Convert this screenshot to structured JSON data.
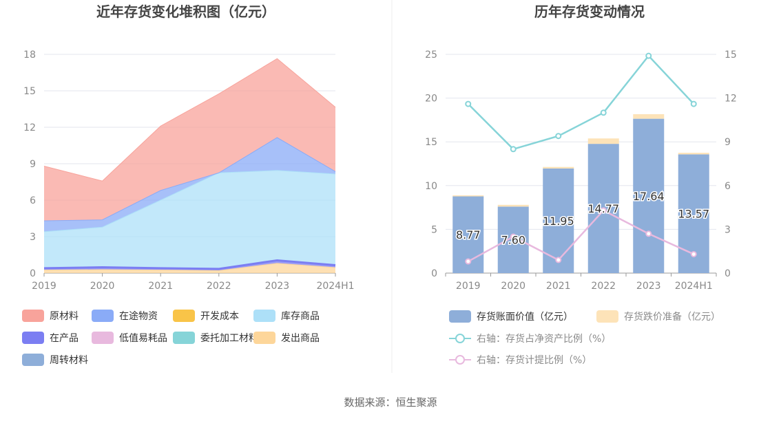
{
  "source": "数据来源：恒生聚源",
  "chart_data": [
    {
      "type": "area",
      "stacked": true,
      "title": "近年存货变化堆积图（亿元）",
      "categories": [
        "2019",
        "2020",
        "2021",
        "2022",
        "2023",
        "2024H1"
      ],
      "ylim": [
        0,
        18
      ],
      "yticks": [
        0,
        3,
        6,
        9,
        12,
        15,
        18
      ],
      "grid": true,
      "legend_position": "bottom",
      "series": [
        {
          "name": "原材料",
          "color": "#f8a39b",
          "values": [
            4.5,
            3.2,
            5.3,
            6.5,
            6.5,
            5.3
          ]
        },
        {
          "name": "在途物资",
          "color": "#8aabf7",
          "values": [
            0.9,
            0.6,
            0.8,
            0.0,
            2.7,
            0.2
          ]
        },
        {
          "name": "开发成本",
          "color": "#f9c448",
          "values": [
            0,
            0,
            0,
            0,
            0,
            0
          ]
        },
        {
          "name": "库存商品",
          "color": "#ade0f8",
          "values": [
            3.0,
            3.3,
            5.6,
            7.9,
            7.4,
            7.5
          ]
        },
        {
          "name": "在产品",
          "color": "#7b7ef2",
          "values": [
            0.15,
            0.2,
            0.15,
            0.15,
            0.25,
            0.2
          ]
        },
        {
          "name": "低值易耗品",
          "color": "#e8b9de",
          "values": [
            0,
            0,
            0,
            0,
            0,
            0
          ]
        },
        {
          "name": "委托加工材料",
          "color": "#86d4d8",
          "values": [
            0,
            0,
            0,
            0,
            0,
            0
          ]
        },
        {
          "name": "发出商品",
          "color": "#fdd69a",
          "values": [
            0.25,
            0.28,
            0.25,
            0.2,
            0.8,
            0.45
          ]
        },
        {
          "name": "周转材料",
          "color": "#8eaed9",
          "values": [
            0,
            0,
            0,
            0,
            0,
            0
          ]
        }
      ]
    },
    {
      "type": "bar",
      "stacked": true,
      "title": "历年存货变动情况",
      "categories": [
        "2019",
        "2020",
        "2021",
        "2022",
        "2023",
        "2024H1"
      ],
      "ylim": [
        0,
        25
      ],
      "yticks": [
        0,
        5,
        10,
        15,
        20,
        25
      ],
      "y2lim": [
        0,
        15
      ],
      "y2ticks": [
        0,
        3,
        6,
        9,
        12,
        15
      ],
      "grid": true,
      "legend_position": "bottom",
      "series": [
        {
          "name": "存货账面价值（亿元）",
          "kind": "bar",
          "axis": "left",
          "color": "#8eaed9",
          "values": [
            8.77,
            7.6,
            11.95,
            14.77,
            17.64,
            13.57
          ],
          "labels": [
            "8.77",
            "7.60",
            "11.95",
            "14.77",
            "17.64",
            "13.57"
          ]
        },
        {
          "name": "存货跌价准备（亿元）",
          "kind": "bar",
          "axis": "left",
          "color": "#fde3b8",
          "values": [
            0.12,
            0.2,
            0.18,
            0.62,
            0.52,
            0.18
          ]
        },
        {
          "name": "右轴：存货占净资产比例（%）",
          "kind": "line",
          "axis": "right",
          "color": "#86d4d8",
          "values": [
            11.6,
            8.5,
            9.4,
            11.0,
            14.9,
            11.6
          ]
        },
        {
          "name": "右轴：存货计提比例（%）",
          "kind": "line",
          "axis": "right",
          "color": "#e8b9de",
          "values": [
            0.8,
            2.5,
            0.9,
            4.3,
            2.7,
            1.3
          ]
        }
      ]
    }
  ]
}
